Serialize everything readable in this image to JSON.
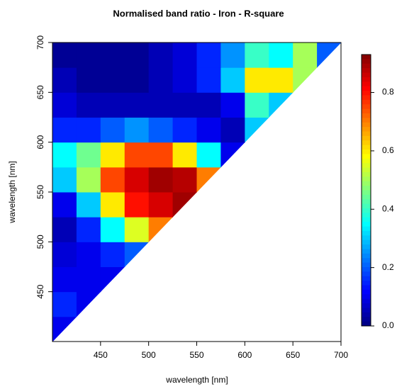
{
  "chart_data": {
    "type": "heatmap",
    "title": "Normalised band ratio - Iron - R-square",
    "x_label": "wavelength [nm]",
    "y_label": "wavelength [nm]",
    "x_bins": [
      400,
      425,
      450,
      475,
      500,
      525,
      550,
      575,
      600,
      625,
      650,
      675,
      700
    ],
    "y_bins": [
      400,
      425,
      450,
      475,
      500,
      525,
      550,
      575,
      600,
      625,
      650,
      675,
      700
    ],
    "values": [
      [
        0.1,
        null,
        null,
        null,
        null,
        null,
        null,
        null,
        null,
        null,
        null,
        null
      ],
      [
        0.15,
        0.1,
        null,
        null,
        null,
        null,
        null,
        null,
        null,
        null,
        null,
        null
      ],
      [
        0.1,
        0.1,
        0.1,
        null,
        null,
        null,
        null,
        null,
        null,
        null,
        null,
        null
      ],
      [
        0.08,
        0.1,
        0.15,
        0.2,
        null,
        null,
        null,
        null,
        null,
        null,
        null,
        null
      ],
      [
        0.05,
        0.15,
        0.35,
        0.55,
        0.7,
        null,
        null,
        null,
        null,
        null,
        null,
        null
      ],
      [
        0.1,
        0.3,
        0.6,
        0.8,
        0.85,
        0.9,
        null,
        null,
        null,
        null,
        null,
        null
      ],
      [
        0.3,
        0.5,
        0.75,
        0.85,
        0.9,
        0.88,
        0.7,
        null,
        null,
        null,
        null,
        null
      ],
      [
        0.35,
        0.45,
        0.6,
        0.75,
        0.75,
        0.6,
        0.35,
        0.1,
        null,
        null,
        null,
        null
      ],
      [
        0.15,
        0.15,
        0.2,
        0.25,
        0.2,
        0.15,
        0.1,
        0.05,
        0.3,
        null,
        null,
        null
      ],
      [
        0.08,
        0.05,
        0.05,
        0.05,
        0.05,
        0.05,
        0.05,
        0.1,
        0.4,
        0.3,
        null,
        null
      ],
      [
        0.05,
        0.02,
        0.02,
        0.02,
        0.05,
        0.08,
        0.15,
        0.3,
        0.6,
        0.6,
        0.5,
        null
      ],
      [
        0.02,
        0.02,
        0.02,
        0.02,
        0.05,
        0.08,
        0.15,
        0.25,
        0.4,
        0.35,
        0.5,
        0.2
      ]
    ],
    "xlim": [
      400,
      700
    ],
    "ylim": [
      400,
      700
    ],
    "xticks": [
      450,
      500,
      550,
      600,
      650,
      700
    ],
    "yticks": [
      450,
      500,
      550,
      600,
      650,
      700
    ],
    "zlim": [
      0,
      0.93
    ],
    "zticks": [
      {
        "value": 0,
        "label": "0.0"
      },
      0.2,
      0.4,
      0.6,
      0.8
    ]
  }
}
